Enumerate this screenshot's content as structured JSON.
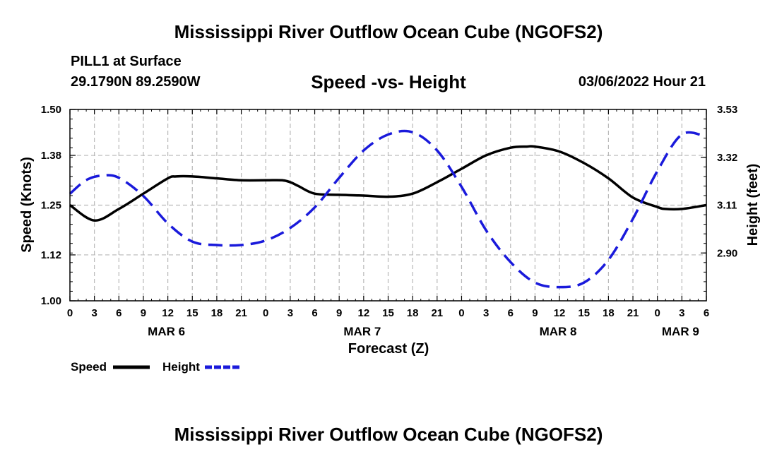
{
  "header": {
    "title": "Mississippi River Outflow Ocean Cube (NGOFS2)",
    "station": "PILL1 at Surface",
    "coords": "29.1790N  89.2590W",
    "subtitle": "Speed -vs- Height",
    "datetime": "03/06/2022 Hour 21"
  },
  "footer": {
    "title": "Mississippi River Outflow Ocean Cube (NGOFS2)"
  },
  "chart_data": {
    "type": "line",
    "title": "Speed -vs- Height",
    "xlabel": "Forecast (Z)",
    "ylabel": "Speed (Knots)",
    "y2label": "Height (feet)",
    "x_range_hours": [
      0,
      78
    ],
    "x_tick_labels": [
      "0",
      "3",
      "6",
      "9",
      "12",
      "15",
      "18",
      "21",
      "0",
      "3",
      "6",
      "9",
      "12",
      "15",
      "18",
      "21",
      "0",
      "3",
      "6",
      "9",
      "12",
      "15",
      "18",
      "21",
      "0",
      "3",
      "6"
    ],
    "date_labels": [
      {
        "label": "MAR 6",
        "hour": 12
      },
      {
        "label": "MAR 7",
        "hour": 36
      },
      {
        "label": "MAR 8",
        "hour": 60
      },
      {
        "label": "MAR 9",
        "hour": 75
      }
    ],
    "ylim": [
      1.0,
      1.5
    ],
    "y_ticks": [
      "1.00",
      "1.12",
      "1.25",
      "1.38",
      "1.50"
    ],
    "y2lim": [
      2.69,
      3.53
    ],
    "y2_ticks": [
      "2.90",
      "3.11",
      "3.32",
      "3.53"
    ],
    "grid": true,
    "legend": [
      {
        "name": "Speed",
        "color": "#000000",
        "style": "solid"
      },
      {
        "name": "Height",
        "color": "#1a1adb",
        "style": "dashed"
      }
    ],
    "series": [
      {
        "name": "Speed",
        "axis": "left",
        "color": "#000000",
        "x": [
          0,
          3,
          6,
          9,
          12,
          13,
          15,
          18,
          21,
          24,
          26,
          27,
          28,
          30,
          33,
          36,
          39,
          42,
          45,
          48,
          51,
          54,
          56,
          57,
          60,
          63,
          66,
          69,
          72,
          73,
          75,
          78
        ],
        "values": [
          1.25,
          1.21,
          1.24,
          1.28,
          1.32,
          1.325,
          1.325,
          1.32,
          1.315,
          1.315,
          1.315,
          1.31,
          1.3,
          1.28,
          1.277,
          1.275,
          1.272,
          1.28,
          1.31,
          1.345,
          1.38,
          1.4,
          1.403,
          1.403,
          1.39,
          1.36,
          1.32,
          1.27,
          1.245,
          1.24,
          1.24,
          1.25
        ]
      },
      {
        "name": "Height",
        "axis": "right",
        "color": "#1a1adb",
        "x": [
          0,
          2,
          4,
          6,
          9,
          12,
          15,
          18,
          21,
          24,
          27,
          30,
          33,
          36,
          39,
          42,
          45,
          48,
          51,
          54,
          57,
          60,
          63,
          66,
          69,
          72,
          75,
          78
        ],
        "values": [
          3.16,
          3.22,
          3.24,
          3.23,
          3.15,
          3.03,
          2.95,
          2.935,
          2.935,
          2.955,
          3.01,
          3.1,
          3.23,
          3.35,
          3.42,
          3.43,
          3.35,
          3.19,
          3.0,
          2.86,
          2.77,
          2.75,
          2.77,
          2.87,
          3.05,
          3.26,
          3.42,
          3.41
        ]
      }
    ]
  }
}
